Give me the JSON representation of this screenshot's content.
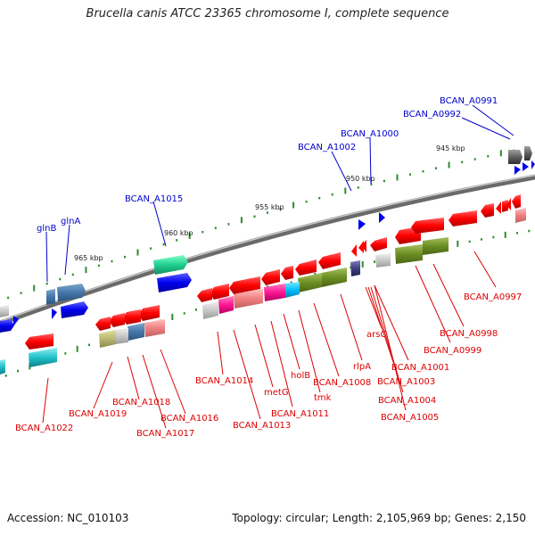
{
  "title": "Brucella canis ATCC 23365 chromosome I, complete sequence",
  "footer": {
    "accession": "Accession: NC_010103",
    "topology": "Topology: circular; Length: 2,105,969 bp; Genes: 2,150"
  },
  "colors": {
    "backbone": "#888888",
    "forward_label": "#0000cc",
    "reverse_label": "#dd0000",
    "ticks": "#2e8b2e"
  },
  "scale_labels": [
    "945 kbp",
    "950 kbp",
    "955 kbp",
    "960 kbp",
    "965 kbp"
  ],
  "forward_labels": [
    "BCAN_A0991",
    "BCAN_A0992",
    "BCAN_A1000",
    "BCAN_A1002",
    "BCAN_A1015",
    "glnB",
    "glnA"
  ],
  "reverse_labels": [
    "BCAN_A0997",
    "BCAN_A0998",
    "BCAN_A0999",
    "arsC",
    "BCAN_A1001",
    "rlpA",
    "BCAN_A1003",
    "BCAN_A1004",
    "BCAN_A1005",
    "BCAN_A1008",
    "tmk",
    "holB",
    "BCAN_A1011",
    "metG",
    "BCAN_A1013",
    "BCAN_A1014",
    "BCAN_A1016",
    "BCAN_A1017",
    "BCAN_A1018",
    "BCAN_A1019",
    "BCAN_A1022"
  ]
}
